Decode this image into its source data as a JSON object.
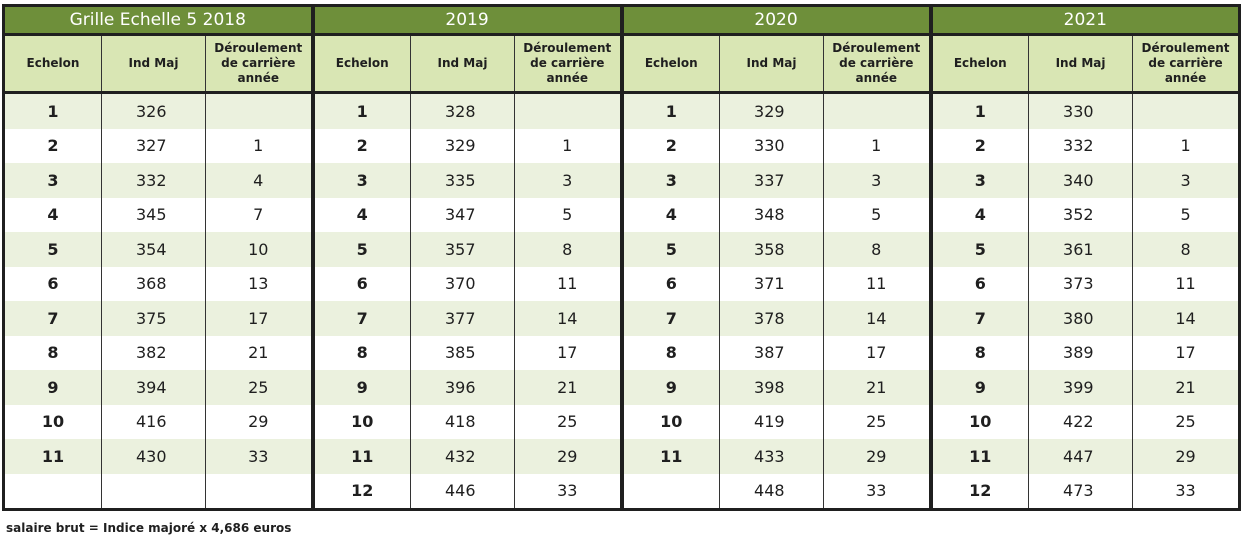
{
  "blocks": [
    {
      "title": "Grille Echelle 5  2018",
      "rows": [
        [
          "1",
          "326",
          ""
        ],
        [
          "2",
          "327",
          "1"
        ],
        [
          "3",
          "332",
          "4"
        ],
        [
          "4",
          "345",
          "7"
        ],
        [
          "5",
          "354",
          "10"
        ],
        [
          "6",
          "368",
          "13"
        ],
        [
          "7",
          "375",
          "17"
        ],
        [
          "8",
          "382",
          "21"
        ],
        [
          "9",
          "394",
          "25"
        ],
        [
          "10",
          "416",
          "29"
        ],
        [
          "11",
          "430",
          "33"
        ],
        [
          "",
          "",
          ""
        ]
      ]
    },
    {
      "title": "2019",
      "rows": [
        [
          "1",
          "328",
          ""
        ],
        [
          "2",
          "329",
          "1"
        ],
        [
          "3",
          "335",
          "3"
        ],
        [
          "4",
          "347",
          "5"
        ],
        [
          "5",
          "357",
          "8"
        ],
        [
          "6",
          "370",
          "11"
        ],
        [
          "7",
          "377",
          "14"
        ],
        [
          "8",
          "385",
          "17"
        ],
        [
          "9",
          "396",
          "21"
        ],
        [
          "10",
          "418",
          "25"
        ],
        [
          "11",
          "432",
          "29"
        ],
        [
          "12",
          "446",
          "33"
        ]
      ]
    },
    {
      "title": "2020",
      "rows": [
        [
          "1",
          "329",
          ""
        ],
        [
          "2",
          "330",
          "1"
        ],
        [
          "3",
          "337",
          "3"
        ],
        [
          "4",
          "348",
          "5"
        ],
        [
          "5",
          "358",
          "8"
        ],
        [
          "6",
          "371",
          "11"
        ],
        [
          "7",
          "378",
          "14"
        ],
        [
          "8",
          "387",
          "17"
        ],
        [
          "9",
          "398",
          "21"
        ],
        [
          "10",
          "419",
          "25"
        ],
        [
          "11",
          "433",
          "29"
        ],
        [
          "",
          "448",
          "33"
        ]
      ]
    },
    {
      "title": "2021",
      "rows": [
        [
          "1",
          "330",
          ""
        ],
        [
          "2",
          "332",
          "1"
        ],
        [
          "3",
          "340",
          "3"
        ],
        [
          "4",
          "352",
          "5"
        ],
        [
          "5",
          "361",
          "8"
        ],
        [
          "6",
          "373",
          "11"
        ],
        [
          "7",
          "380",
          "14"
        ],
        [
          "8",
          "389",
          "17"
        ],
        [
          "9",
          "399",
          "21"
        ],
        [
          "10",
          "422",
          "25"
        ],
        [
          "11",
          "447",
          "29"
        ],
        [
          "12",
          "473",
          "33"
        ]
      ]
    }
  ],
  "headers": {
    "echelon": "Echelon",
    "ind_maj": "Ind Maj",
    "deroulement": "Déroulement de carrière année"
  },
  "footnote": "salaire brut = Indice majoré x 4,686 euros",
  "colors": {
    "year_header_bg": "#6e8f3a",
    "column_header_bg": "#d9e6b4",
    "stripe_bg": "#ebf1de",
    "border": "#1f1f1f"
  }
}
